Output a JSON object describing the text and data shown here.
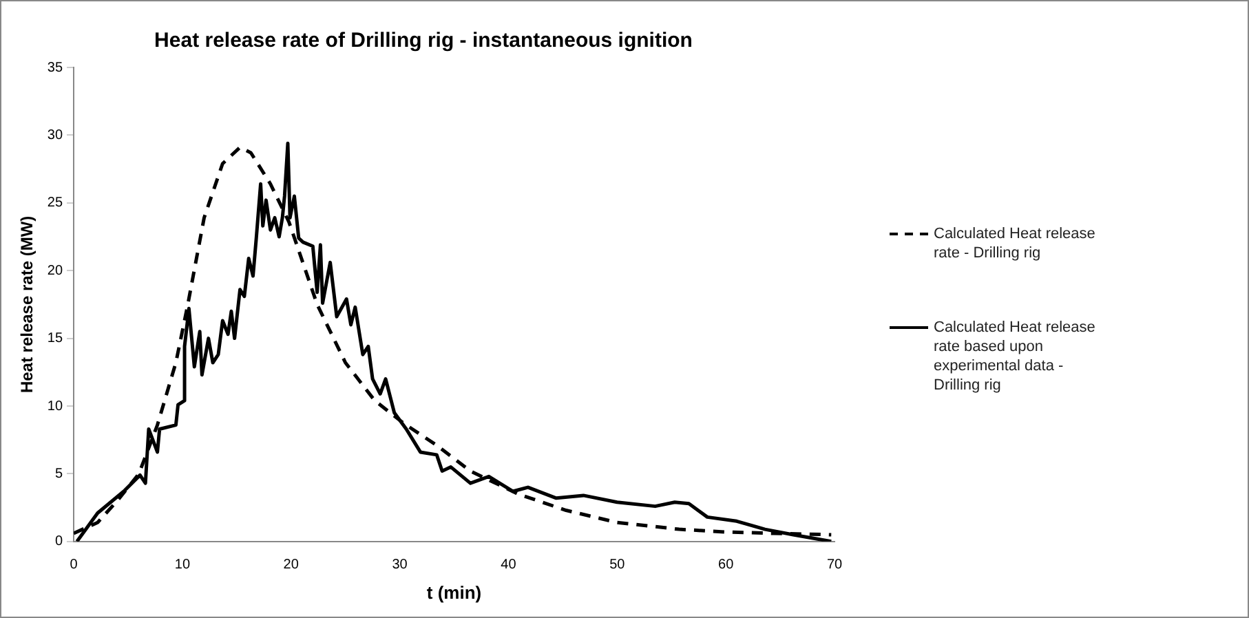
{
  "chart_data": {
    "type": "line",
    "title": "Heat release rate of Drilling rig - instantaneous ignition",
    "xlabel": "t (min)",
    "ylabel": "Heat release rate (MW)",
    "xlim": [
      0,
      70
    ],
    "xticks": [
      0,
      10,
      20,
      30,
      40,
      50,
      60,
      70
    ],
    "ylim": [
      0,
      35
    ],
    "yticks": [
      0,
      5,
      10,
      15,
      20,
      25,
      30,
      35
    ],
    "grid": false,
    "legend": "right",
    "marker": "none",
    "series": [
      {
        "name": "Calculated Heat release rate - Drilling rig",
        "color": "#000000",
        "line_style": "dashed",
        "x": [
          0,
          2.2,
          4,
          6,
          7.7,
          9.4,
          10.5,
          12,
          13.7,
          15.3,
          16.3,
          18.1,
          19.8,
          22.4,
          25,
          27.7,
          30.4,
          33.4,
          36.5,
          40.9,
          45.3,
          50,
          55.7,
          60,
          64.4,
          69.7
        ],
        "values": [
          0.6,
          1.4,
          3,
          5,
          8.6,
          13.2,
          17.5,
          23.9,
          27.9,
          29.1,
          28.7,
          26.4,
          23.6,
          17.5,
          13.2,
          10.4,
          8.7,
          7.1,
          5.2,
          3.5,
          2.3,
          1.4,
          0.9,
          0.7,
          0.6,
          0.5
        ]
      },
      {
        "name": "Calculated Heat release rate based upon experimental data - Drilling rig",
        "color": "#000000",
        "line_style": "solid",
        "x": [
          0.3,
          2.2,
          4.6,
          6.1,
          6.6,
          6.9,
          7.7,
          7.9,
          9.4,
          9.6,
          10.2,
          10.2,
          10.6,
          11.1,
          11.6,
          11.8,
          12.4,
          12.8,
          13.3,
          13.7,
          14.2,
          14.5,
          14.8,
          15.3,
          15.7,
          16.1,
          16.5,
          16.8,
          17.2,
          17.4,
          17.7,
          18.1,
          18.5,
          18.9,
          19.2,
          19.4,
          19.7,
          19.9,
          20.3,
          20.7,
          21.1,
          22.0,
          22.4,
          22.7,
          22.9,
          23.6,
          24.2,
          25.1,
          25.5,
          25.9,
          26.6,
          27.1,
          27.5,
          28.2,
          28.7,
          29.5,
          30.6,
          31.9,
          33.4,
          33.9,
          34.7,
          36.5,
          38.2,
          40.4,
          41.8,
          44.4,
          46.9,
          50,
          53.5,
          55.3,
          56.6,
          58.3,
          61,
          63.6,
          66.2,
          69.7
        ],
        "values": [
          0,
          2.1,
          3.7,
          4.9,
          4.3,
          8.3,
          6.6,
          8.3,
          8.6,
          10.1,
          10.4,
          14.4,
          17.2,
          12.9,
          15.5,
          12.3,
          15.0,
          13.2,
          13.8,
          16.3,
          15.3,
          17.0,
          15.0,
          18.6,
          18.1,
          20.9,
          19.6,
          22.4,
          26.4,
          23.3,
          25.2,
          23.0,
          23.9,
          22.5,
          23.9,
          25.5,
          29.4,
          23.9,
          25.5,
          22.4,
          22.1,
          21.8,
          18.4,
          21.9,
          17.6,
          20.6,
          16.6,
          17.9,
          16.0,
          17.3,
          13.8,
          14.4,
          12.0,
          10.9,
          12.0,
          9.5,
          8.3,
          6.6,
          6.4,
          5.2,
          5.5,
          4.3,
          4.8,
          3.7,
          4.0,
          3.2,
          3.4,
          2.9,
          2.6,
          2.9,
          2.8,
          1.8,
          1.5,
          0.9,
          0.5,
          0
        ]
      }
    ]
  }
}
